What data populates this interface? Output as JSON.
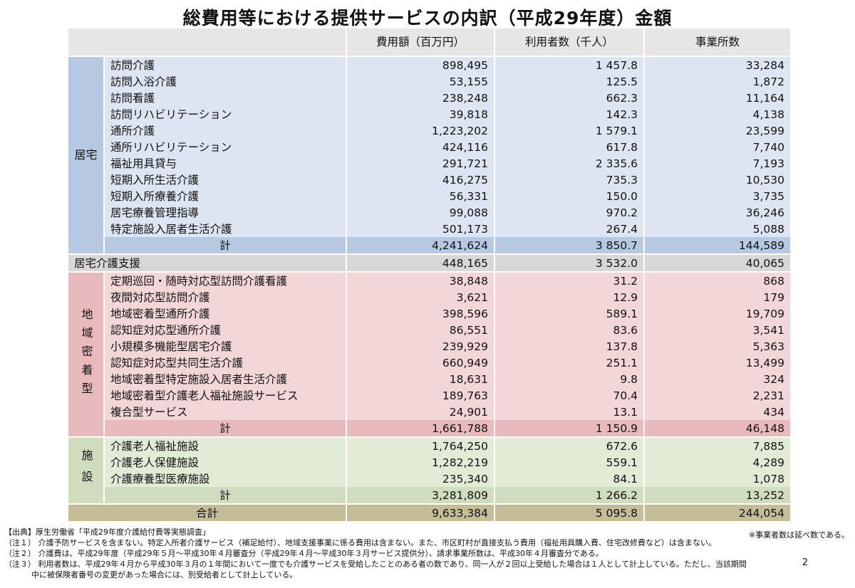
{
  "title": "総費用等における提供サービスの内訳（平成29年度）金額",
  "columns": [
    "費用額（百万円）",
    "利用者数（千人）",
    "事業所数"
  ],
  "groups": {
    "kyotaku": {
      "label": "居宅",
      "rows": [
        {
          "name": "訪問介護",
          "cost": "898,495",
          "users": "1 457.8",
          "offices": "33,284"
        },
        {
          "name": "訪問入浴介護",
          "cost": "53,155",
          "users": "125.5",
          "offices": "1,872"
        },
        {
          "name": "訪問看護",
          "cost": "238,248",
          "users": "662.3",
          "offices": "11,164"
        },
        {
          "name": "訪問リハビリテーション",
          "cost": "39,818",
          "users": "142.3",
          "offices": "4,138"
        },
        {
          "name": "通所介護",
          "cost": "1,223,202",
          "users": "1 579.1",
          "offices": "23,599"
        },
        {
          "name": "通所リハビリテーション",
          "cost": "424,116",
          "users": "617.8",
          "offices": "7,740"
        },
        {
          "name": "福祉用具貸与",
          "cost": "291,721",
          "users": "2 335.6",
          "offices": "7,193"
        },
        {
          "name": "短期入所生活介護",
          "cost": "416,275",
          "users": "735.3",
          "offices": "10,530"
        },
        {
          "name": "短期入所療養介護",
          "cost": "56,331",
          "users": "150.0",
          "offices": "3,735"
        },
        {
          "name": "居宅療養管理指導",
          "cost": "99,088",
          "users": "970.2",
          "offices": "36,246"
        },
        {
          "name": "特定施設入居者生活介護",
          "cost": "501,173",
          "users": "267.4",
          "offices": "5,088"
        }
      ],
      "total": {
        "name": "計",
        "cost": "4,241,624",
        "users": "3 850.7",
        "offices": "144,589"
      }
    },
    "support": {
      "name": "居宅介護支援",
      "cost": "448,165",
      "users": "3 532.0",
      "offices": "40,065"
    },
    "chiiki": {
      "label": "地域密着型",
      "rows": [
        {
          "name": "定期巡回・随時対応型訪問介護看護",
          "cost": "38,848",
          "users": "31.2",
          "offices": "868"
        },
        {
          "name": "夜間対応型訪問介護",
          "cost": "3,621",
          "users": "12.9",
          "offices": "179"
        },
        {
          "name": "地域密着型通所介護",
          "cost": "398,596",
          "users": "589.1",
          "offices": "19,709"
        },
        {
          "name": "認知症対応型通所介護",
          "cost": "86,551",
          "users": "83.6",
          "offices": "3,541"
        },
        {
          "name": "小規模多機能型居宅介護",
          "cost": "239,929",
          "users": "137.8",
          "offices": "5,363"
        },
        {
          "name": "認知症対応型共同生活介護",
          "cost": "660,949",
          "users": "251.1",
          "offices": "13,499"
        },
        {
          "name": "地域密着型特定施設入居者生活介護",
          "cost": "18,631",
          "users": "9.8",
          "offices": "324"
        },
        {
          "name": "地域密着型介護老人福祉施設サービス",
          "cost": "189,763",
          "users": "70.4",
          "offices": "2,231"
        },
        {
          "name": "複合型サービス",
          "cost": "24,901",
          "users": "13.1",
          "offices": "434"
        }
      ],
      "total": {
        "name": "計",
        "cost": "1,661,788",
        "users": "1 150.9",
        "offices": "46,148"
      }
    },
    "shisetsu": {
      "label": "施設",
      "rows": [
        {
          "name": "介護老人福祉施設",
          "cost": "1,764,250",
          "users": "672.6",
          "offices": "7,885"
        },
        {
          "name": "介護老人保健施設",
          "cost": "1,282,219",
          "users": "559.1",
          "offices": "4,289"
        },
        {
          "name": "介護療養型医療施設",
          "cost": "235,340",
          "users": "84.1",
          "offices": "1,078"
        }
      ],
      "total": {
        "name": "計",
        "cost": "3,281,809",
        "users": "1 266.2",
        "offices": "13,252"
      }
    }
  },
  "grand_total": {
    "name": "合計",
    "cost": "9,633,384",
    "users": "5 095.8",
    "offices": "244,054"
  },
  "notes": {
    "source": "【出典】厚生労働省「平成29年度介護給付費等実態調査」",
    "right_note": "※事業者数は延べ数である。",
    "n1": "（注１） 介護予防サービスを含まない。特定入所者介護サービス（補足給付）、地域支援事業に係る費用は含まない。また、市区町村が直接支払う費用（福祉用具購入費、住宅改修費など）は含まない。",
    "n2": "（注２） 介護費は、平成29年度（平成29年５月～平成30年４月審査分（平成29年４月～平成30年３月サービス提供分）、請求事業所数は、平成30年４月審査分である。",
    "n3a": "（注３） 利用者数は、平成29年４月から平成30年３月の１年間において一度でも介護サービスを受給したことのある者の数であり、同一人が２回以上受給した場合は１人として計上している。ただし、当該期間",
    "n3b": "中に被保険者番号の変更があった場合には、別受給者として計上している。",
    "page": "2"
  },
  "colors": {
    "blue": "#dce5f1",
    "blue_dark": "#b7c9e2",
    "pink": "#f2d6d8",
    "pink_dark": "#e8b9bd",
    "green": "#e2ebd6",
    "green_dark": "#cfdcbd",
    "gray": "#d7d7d7",
    "grand": "#c5bd98"
  }
}
